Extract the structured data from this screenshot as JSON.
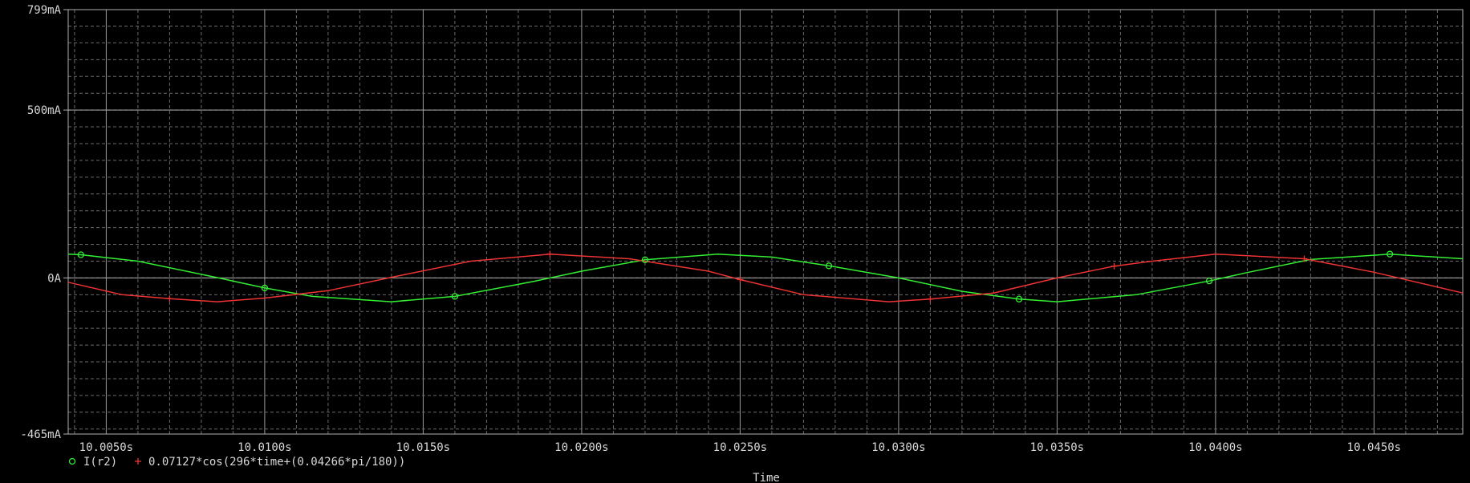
{
  "chart_data": {
    "type": "line",
    "x_range": [
      10.0038,
      10.0478
    ],
    "y_range": [
      -0.465,
      0.799
    ],
    "y_ticks": [
      {
        "value": 0.799,
        "label": "799mA"
      },
      {
        "value": 0.5,
        "label": "500mA"
      },
      {
        "value": 0.0,
        "label": "0A"
      },
      {
        "value": -0.465,
        "label": "-465mA"
      }
    ],
    "x_ticks": [
      {
        "value": 10.005,
        "label": "10.0050s"
      },
      {
        "value": 10.01,
        "label": "10.0100s"
      },
      {
        "value": 10.015,
        "label": "10.0150s"
      },
      {
        "value": 10.02,
        "label": "10.0200s"
      },
      {
        "value": 10.025,
        "label": "10.0250s"
      },
      {
        "value": 10.03,
        "label": "10.0300s"
      },
      {
        "value": 10.035,
        "label": "10.0350s"
      },
      {
        "value": 10.04,
        "label": "10.0400s"
      },
      {
        "value": 10.045,
        "label": "10.0450s"
      }
    ],
    "xlabel": "Time",
    "grid": true,
    "series": [
      {
        "name": "I(r2)",
        "color": "#33ee33",
        "marker": "circle",
        "x": [
          10.0038,
          10.0042,
          10.006,
          10.0085,
          10.01,
          10.0115,
          10.014,
          10.016,
          10.0185,
          10.02,
          10.022,
          10.0243,
          10.026,
          10.0278,
          10.03,
          10.032,
          10.0338,
          10.035,
          10.0375,
          10.0398,
          10.041,
          10.043,
          10.0455,
          10.0478
        ],
        "y": [
          0.071,
          0.069,
          0.05,
          0.001,
          -0.03,
          -0.055,
          -0.071,
          -0.055,
          -0.01,
          0.02,
          0.054,
          0.071,
          0.062,
          0.036,
          0.0,
          -0.04,
          -0.063,
          -0.071,
          -0.05,
          -0.009,
          0.016,
          0.055,
          0.071,
          0.057
        ]
      },
      {
        "name": "0.07127*cos(296*time+(0.04266*pi/180))",
        "color": "#ee3333",
        "marker": "plus",
        "x": [
          10.0038,
          10.0055,
          10.007,
          10.0085,
          10.01,
          10.012,
          10.014,
          10.0165,
          10.019,
          10.0215,
          10.024,
          10.025,
          10.027,
          10.0297,
          10.031,
          10.033,
          10.035,
          10.0368,
          10.038,
          10.04,
          10.0428,
          10.045,
          10.0478
        ],
        "y": [
          -0.013,
          -0.05,
          -0.062,
          -0.071,
          -0.06,
          -0.038,
          0.002,
          0.05,
          0.071,
          0.057,
          0.02,
          -0.005,
          -0.05,
          -0.071,
          -0.063,
          -0.045,
          0.0,
          0.035,
          0.05,
          0.071,
          0.057,
          0.017,
          -0.045
        ]
      }
    ],
    "markers": [
      {
        "series": 0,
        "x": 10.0042,
        "y": 0.069
      },
      {
        "series": 0,
        "x": 10.01,
        "y": -0.03
      },
      {
        "series": 0,
        "x": 10.016,
        "y": -0.055
      },
      {
        "series": 0,
        "x": 10.022,
        "y": 0.054
      },
      {
        "series": 0,
        "x": 10.0278,
        "y": 0.036
      },
      {
        "series": 0,
        "x": 10.0338,
        "y": -0.063
      },
      {
        "series": 0,
        "x": 10.0398,
        "y": -0.009
      },
      {
        "series": 0,
        "x": 10.0455,
        "y": 0.071
      },
      {
        "series": 1,
        "x": 10.007,
        "y": -0.062
      },
      {
        "series": 1,
        "x": 10.019,
        "y": 0.071
      },
      {
        "series": 1,
        "x": 10.025,
        "y": -0.005
      },
      {
        "series": 1,
        "x": 10.031,
        "y": -0.063
      },
      {
        "series": 1,
        "x": 10.0368,
        "y": 0.035
      },
      {
        "series": 1,
        "x": 10.0428,
        "y": 0.057
      }
    ],
    "legend": [
      {
        "label": "I(r2)",
        "color": "#33ee33",
        "marker": "circle"
      },
      {
        "label": "0.07127*cos(296*time+(0.04266*pi/180))",
        "color": "#ee3333",
        "marker": "plus"
      }
    ]
  }
}
